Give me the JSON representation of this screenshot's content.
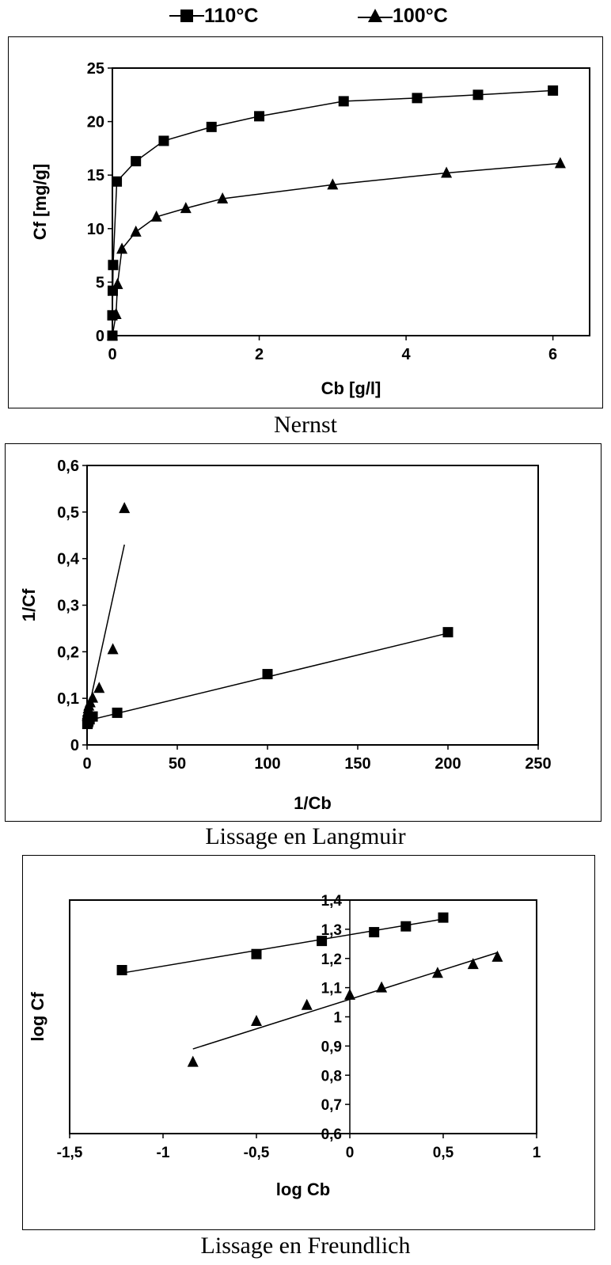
{
  "legend": [
    {
      "label": "110°C",
      "marker": "square"
    },
    {
      "label": "100°C",
      "marker": "triangle"
    }
  ],
  "chart_data": [
    {
      "type": "line",
      "caption": "Nernst",
      "xlabel": "Cb [g/l]",
      "ylabel": "Cf [mg/g]",
      "xlim": [
        0,
        6.5
      ],
      "ylim": [
        0,
        25
      ],
      "xticks": [
        0,
        2,
        4,
        6
      ],
      "xtick_labels": [
        "0",
        "2",
        "4",
        "6"
      ],
      "yticks": [
        0,
        5,
        10,
        15,
        20,
        25
      ],
      "ytick_labels": [
        "0",
        "5",
        "10",
        "15",
        "20",
        "25"
      ],
      "grid": false,
      "series": [
        {
          "name": "110°C",
          "marker": "square",
          "line": "connected",
          "x": [
            0,
            0,
            0.005,
            0.01,
            0.06,
            0.32,
            0.7,
            1.35,
            2.0,
            3.15,
            4.15,
            4.98,
            6.0
          ],
          "y": [
            0,
            1.9,
            4.2,
            6.6,
            14.4,
            16.3,
            18.2,
            19.5,
            20.5,
            21.9,
            22.2,
            22.5,
            22.9
          ]
        },
        {
          "name": "100°C",
          "marker": "triangle",
          "line": "connected",
          "x": [
            0,
            0.05,
            0.07,
            0.13,
            0.32,
            0.6,
            1.0,
            1.5,
            3.0,
            4.55,
            6.1
          ],
          "y": [
            0,
            2.0,
            4.8,
            8.1,
            9.7,
            11.1,
            11.9,
            12.8,
            14.1,
            15.2,
            16.1
          ]
        }
      ]
    },
    {
      "type": "scatter",
      "caption": "Lissage en Langmuir",
      "xlabel": "1/Cb",
      "ylabel": "1/Cf",
      "xlim": [
        0,
        250
      ],
      "ylim": [
        0,
        0.6
      ],
      "xticks": [
        0,
        50,
        100,
        150,
        200,
        250
      ],
      "xtick_labels": [
        "0",
        "50",
        "100",
        "150",
        "200",
        "250"
      ],
      "yticks": [
        0,
        0.1,
        0.2,
        0.3,
        0.4,
        0.5,
        0.6
      ],
      "ytick_labels": [
        "0",
        "0,1",
        "0,2",
        "0,3",
        "0,4",
        "0,5",
        "0,6"
      ],
      "grid": false,
      "series": [
        {
          "name": "110°C",
          "marker": "square",
          "x": [
            0.17,
            0.2,
            0.32,
            0.5,
            0.73,
            1.4,
            3.1,
            16.7,
            100,
            200
          ],
          "y": [
            0.045,
            0.045,
            0.046,
            0.049,
            0.051,
            0.055,
            0.061,
            0.069,
            0.152,
            0.242
          ],
          "fit": {
            "x": [
              0,
              200
            ],
            "y": [
              0.052,
              0.24
            ]
          }
        },
        {
          "name": "100°C",
          "marker": "triangle",
          "x": [
            0.16,
            0.22,
            0.33,
            0.67,
            1.0,
            1.7,
            3.1,
            6.7,
            14.3,
            20.7
          ],
          "y": [
            0.062,
            0.066,
            0.071,
            0.078,
            0.084,
            0.091,
            0.101,
            0.122,
            0.205,
            0.508
          ],
          "fit": {
            "x": [
              0,
              20.7
            ],
            "y": [
              0.062,
              0.43
            ]
          }
        }
      ]
    },
    {
      "type": "scatter",
      "caption": "Lissage en Freundlich",
      "xlabel": "log Cb",
      "ylabel": "log Cf",
      "xlim": [
        -1.5,
        1
      ],
      "ylim": [
        0.6,
        1.4
      ],
      "xticks": [
        -1.5,
        -1,
        -0.5,
        0,
        0.5,
        1
      ],
      "xtick_labels": [
        "-1,5",
        "-1",
        "-0,5",
        "0",
        "0,5",
        "1"
      ],
      "yticks": [
        0.6,
        0.7,
        0.8,
        0.9,
        1.0,
        1.1,
        1.2,
        1.3,
        1.4
      ],
      "ytick_labels": [
        "0,6",
        "0,7",
        "0,8",
        "0,9",
        "1",
        "1,1",
        "1,2",
        "1,3",
        "1,4"
      ],
      "grid": false,
      "series": [
        {
          "name": "110°C",
          "marker": "square",
          "x": [
            -1.22,
            -0.5,
            -0.15,
            0.13,
            0.3,
            0.5
          ],
          "y": [
            1.16,
            1.215,
            1.26,
            1.29,
            1.31,
            1.34
          ],
          "fit": {
            "x": [
              -1.22,
              0.5
            ],
            "y": [
              1.15,
              1.335
            ]
          }
        },
        {
          "name": "100°C",
          "marker": "triangle",
          "x": [
            -0.84,
            -0.5,
            -0.23,
            0,
            0.17,
            0.47,
            0.66,
            0.79
          ],
          "y": [
            0.845,
            0.985,
            1.04,
            1.075,
            1.1,
            1.15,
            1.18,
            1.205
          ],
          "fit": {
            "x": [
              -0.84,
              0.79
            ],
            "y": [
              0.89,
              1.22
            ]
          }
        }
      ]
    }
  ]
}
